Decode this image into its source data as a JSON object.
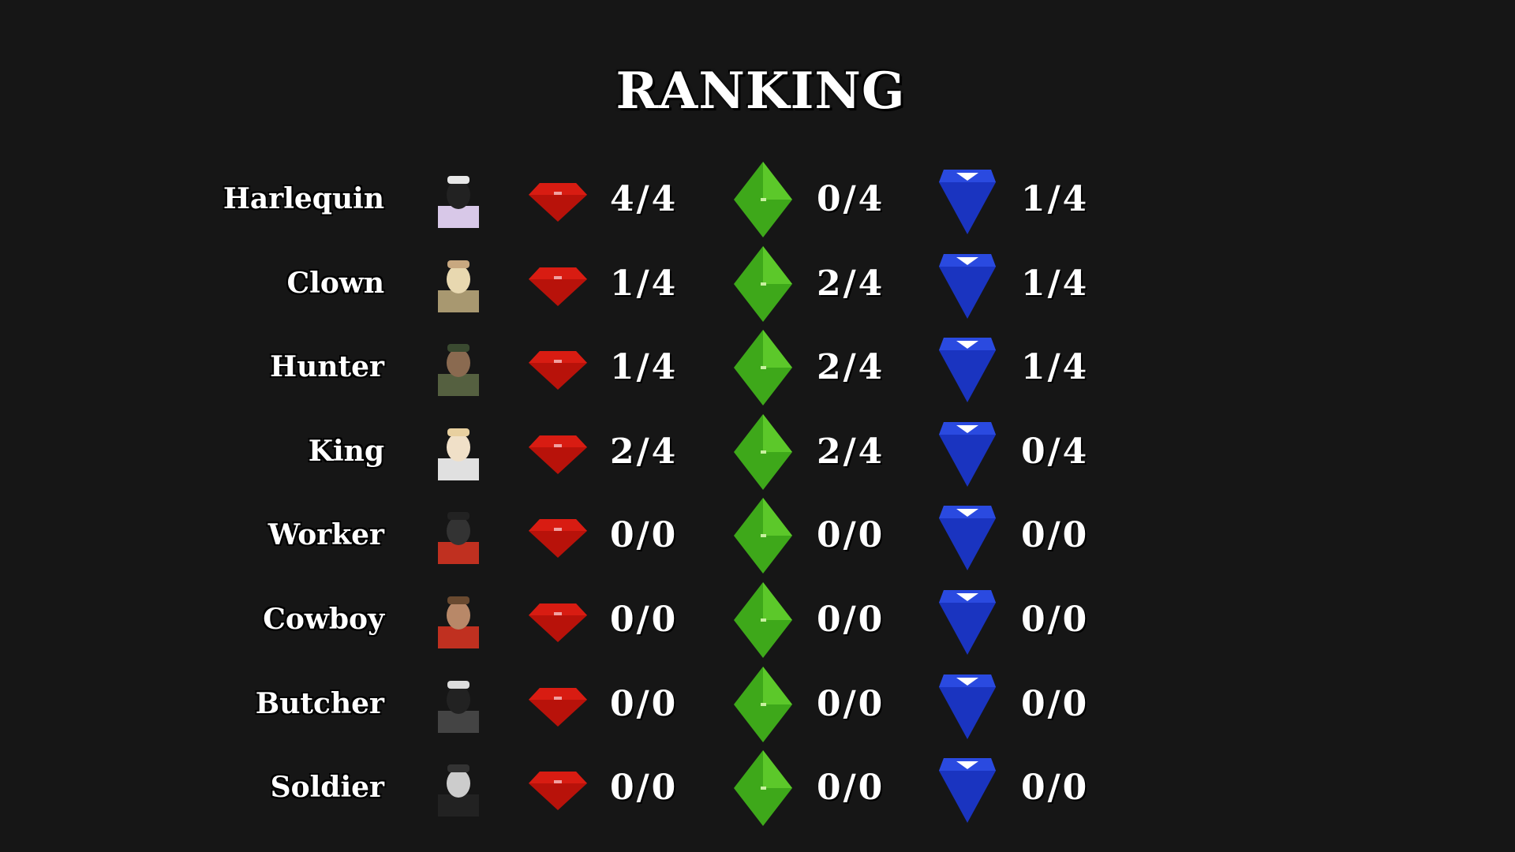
{
  "title": "RANKING",
  "colors": {
    "background": "#161616",
    "red_gem": "#c8140c",
    "green_gem": "#46b41e",
    "blue_gem": "#1e3cc8"
  },
  "rows": [
    {
      "name": "Harlequin",
      "red": "4/4",
      "green": "0/4",
      "blue": "1/4"
    },
    {
      "name": "Clown",
      "red": "1/4",
      "green": "2/4",
      "blue": "1/4"
    },
    {
      "name": "Hunter",
      "red": "1/4",
      "green": "2/4",
      "blue": "1/4"
    },
    {
      "name": "King",
      "red": "2/4",
      "green": "2/4",
      "blue": "0/4"
    },
    {
      "name": "Worker",
      "red": "0/0",
      "green": "0/0",
      "blue": "0/0"
    },
    {
      "name": "Cowboy",
      "red": "0/0",
      "green": "0/0",
      "blue": "0/0"
    },
    {
      "name": "Butcher",
      "red": "0/0",
      "green": "0/0",
      "blue": "0/0"
    },
    {
      "name": "Soldier",
      "red": "0/0",
      "green": "0/0",
      "blue": "0/0"
    }
  ]
}
